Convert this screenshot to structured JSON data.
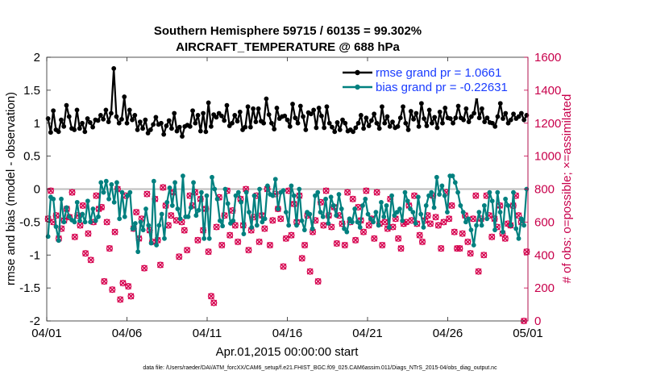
{
  "chart_data": {
    "type": "line",
    "title": "Southern Hemisphere 59715 / 60135 = 99.302%",
    "subtitle": "AIRCRAFT_TEMPERATURE @ 688 hPa",
    "xlabel": "Apr.01,2015 00:00:00 start",
    "ylabel": "rmse and bias (model - observation)",
    "ylabel_right": "# of obs: o=possible; ×=assimilated",
    "xlim": [
      0,
      30
    ],
    "ylim": [
      -2,
      2
    ],
    "ylim_right": [
      0,
      1600
    ],
    "x_ticks": [
      0,
      5,
      10,
      15,
      20,
      25,
      30
    ],
    "x_tick_labels": [
      "04/01",
      "04/06",
      "04/11",
      "04/16",
      "04/21",
      "04/26",
      "05/01"
    ],
    "y_ticks": [
      -2,
      -1.5,
      -1,
      -0.5,
      0,
      0.5,
      1,
      1.5,
      2
    ],
    "y_tick_labels": [
      "-2",
      "-1.5",
      "-1",
      "-0.5",
      "0",
      "0.5",
      "1",
      "1.5",
      "2"
    ],
    "y_right_ticks": [
      0,
      200,
      400,
      600,
      800,
      1000,
      1200,
      1400,
      1600
    ],
    "y_right_tick_labels": [
      "0",
      "200",
      "400",
      "600",
      "800",
      "1000",
      "1200",
      "1400",
      "1600"
    ],
    "zero_line": 0,
    "legend_position": "top-right",
    "series": [
      {
        "name": "rmse grand pr = 1.0661",
        "color": "#000000",
        "marker": "star",
        "values": [
          1.07,
          0.86,
          1.19,
          0.9,
          0.87,
          1.05,
          0.95,
          1.27,
          1.1,
          0.92,
          0.9,
          1.2,
          0.92,
          1.0,
          0.87,
          1.07,
          1.01,
          0.94,
          1.05,
          1.04,
          1.12,
          1.06,
          1.2,
          1.02,
          1.15,
          1.83,
          1.1,
          1.0,
          1.06,
          1.4,
          1.0,
          1.2,
          1.05,
          1.12,
          0.9,
          1.02,
          0.92,
          1.05,
          0.85,
          0.9,
          0.98,
          1.09,
          0.98,
          1.0,
          0.83,
          0.96,
          1.04,
          0.92,
          1.15,
          0.88,
          0.94,
          0.8,
          0.95,
          0.97,
          0.95,
          1.19,
          1.0,
          1.12,
          0.88,
          1.15,
          0.87,
          1.31,
          0.95,
          1.13,
          1.09,
          1.15,
          1.11,
          1.04,
          1.27,
          0.96,
          1.0,
          1.12,
          1.03,
          1.17,
          0.9,
          0.94,
          1.25,
          0.94,
          1.22,
          1.02,
          1.22,
          1.03,
          1.0,
          1.37,
          1.13,
          1.0,
          0.91,
          1.23,
          1.07,
          1.1,
          1.11,
          1.05,
          0.95,
          1.29,
          1.08,
          1.0,
          1.26,
          1.1,
          0.9,
          1.16,
          1.14,
          1.2,
          0.93,
          1.23,
          1.11,
          0.93,
          1.25,
          1.0,
          0.94,
          0.87,
          1.01,
          0.9,
          1.05,
          1.0,
          0.88,
          0.9,
          0.87,
          0.93,
          1.0,
          1.12,
          0.92,
          1.08,
          0.96,
          1.04,
          1.14,
          1.0,
          0.92,
          1.25,
          1.0,
          1.1,
          0.95,
          1.02,
          0.93,
          0.95,
          1.08,
          1.25,
          1.0,
          0.9,
          1.18,
          1.06,
          1.15,
          0.95,
          1.3,
          1.07,
          0.96,
          1.2,
          1.0,
          1.09,
          0.93,
          1.17,
          1.0,
          1.23,
          1.08,
          1.07,
          1.0,
          1.08,
          1.26,
          1.08,
          1.05,
          1.22,
          1.02,
          1.1,
          1.15,
          1.4,
          1.08,
          1.22,
          1.02,
          1.08,
          1.01,
          1.0,
          0.95,
          1.1,
          1.3,
          1.07,
          1.15,
          1.0,
          1.05,
          1.14,
          1.07,
          1.1,
          1.15,
          1.05,
          1.12
        ]
      },
      {
        "name": "bias grand pr = -0.22631",
        "color": "#00807f",
        "marker": "star",
        "values": [
          -0.72,
          -0.12,
          -0.15,
          -0.57,
          -0.78,
          -0.15,
          -0.5,
          -0.28,
          -0.42,
          -0.47,
          -0.5,
          -0.2,
          -0.48,
          -0.38,
          -0.5,
          -0.18,
          -0.5,
          -0.3,
          -0.48,
          -0.42,
          0.1,
          -0.05,
          0.12,
          -0.15,
          0.07,
          -0.2,
          0.1,
          -0.45,
          -0.05,
          -0.42,
          -0.1,
          -0.05,
          -0.6,
          -0.52,
          -0.95,
          -0.5,
          -0.62,
          -0.3,
          -0.55,
          -0.82,
          0.12,
          -0.85,
          -0.55,
          -0.38,
          -0.75,
          -0.2,
          0.02,
          -0.25,
          0.1,
          -0.3,
          -0.45,
          0.2,
          -0.42,
          -0.42,
          -0.28,
          0.1,
          -0.4,
          -0.32,
          -0.05,
          -0.75,
          -0.1,
          -0.75,
          0.18,
          0.0,
          -0.15,
          -0.48,
          -0.56,
          0.0,
          -0.22,
          -0.52,
          -0.48,
          -0.1,
          -0.05,
          -0.2,
          -0.68,
          -0.05,
          -0.35,
          -0.58,
          -0.1,
          -0.55,
          0.0,
          -0.5,
          -0.45,
          0.05,
          -0.08,
          -0.1,
          0.15,
          -0.3,
          -0.05,
          -0.02,
          -0.35,
          -0.55,
          0.05,
          -0.1,
          -0.55,
          0.0,
          -0.48,
          -0.62,
          -0.35,
          -0.38,
          -0.6,
          -0.1,
          -0.05,
          -0.35,
          -0.42,
          -0.15,
          -0.52,
          -0.12,
          -0.25,
          -0.4,
          -0.08,
          -0.3,
          -0.6,
          -0.65,
          -0.45,
          -0.5,
          -0.3,
          -0.5,
          -0.58,
          -0.25,
          -0.15,
          -0.38,
          -0.45,
          -0.5,
          -0.35,
          -0.55,
          -0.2,
          -0.42,
          -0.25,
          -0.58,
          -0.1,
          -0.4,
          -0.35,
          -0.3,
          -0.48,
          -0.05,
          -0.18,
          -0.3,
          -0.35,
          -0.52,
          -0.12,
          -0.38,
          -0.58,
          -0.25,
          -0.1,
          -0.05,
          -0.28,
          0.18,
          -0.08,
          0.05,
          -0.1,
          -0.35,
          0.2,
          0.2,
          0.1,
          -0.05,
          -0.25,
          -0.35,
          -0.5,
          -0.45,
          -0.62,
          -0.85,
          -0.55,
          -0.35,
          -0.55,
          -0.25,
          -0.45,
          -0.05,
          -0.18,
          -0.62,
          -0.05,
          -0.35,
          -0.65,
          -0.15,
          -0.25,
          -0.55,
          -0.05,
          -0.6,
          -0.75,
          -0.45,
          -0.55,
          0.0
        ]
      }
    ],
    "obs_counts": {
      "name": "# of obs",
      "color": "#d6004e",
      "values": [
        620,
        790,
        600,
        640,
        500,
        560,
        610,
        680,
        630,
        780,
        510,
        640,
        580,
        700,
        410,
        530,
        370,
        600,
        760,
        680,
        690,
        240,
        600,
        440,
        190,
        540,
        800,
        130,
        230,
        760,
        210,
        150,
        560,
        660,
        500,
        620,
        320,
        770,
        550,
        480,
        740,
        490,
        340,
        810,
        700,
        580,
        640,
        780,
        610,
        390,
        600,
        550,
        430,
        760,
        700,
        780,
        490,
        740,
        550,
        680,
        420,
        150,
        110,
        570,
        750,
        460,
        640,
        790,
        520,
        670,
        580,
        480,
        740,
        580,
        800,
        430,
        550,
        630,
        760,
        480,
        640,
        560,
        800,
        460,
        610,
        770,
        680,
        620,
        330,
        500,
        790,
        520,
        710,
        600,
        760,
        380,
        460,
        640,
        300,
        540,
        610,
        240,
        720,
        580,
        790,
        640,
        570,
        690,
        470,
        640,
        590,
        460,
        780,
        600,
        740,
        490,
        690,
        610,
        540,
        790,
        580,
        620,
        500,
        780,
        590,
        460,
        600,
        560,
        740,
        570,
        620,
        500,
        440,
        590,
        600,
        700,
        610,
        760,
        590,
        520,
        480,
        610,
        640,
        590,
        760,
        630,
        580,
        440,
        600,
        780,
        620,
        700,
        540,
        440,
        440,
        530,
        640,
        480,
        410,
        620,
        760,
        300,
        620,
        400,
        760,
        640,
        510,
        620,
        570,
        700,
        530,
        500,
        590,
        580,
        700,
        760,
        640,
        600,
        0,
        420
      ]
    },
    "legend": [
      "rmse grand pr = 1.0661",
      "bias grand pr = -0.22631"
    ],
    "footnote": "data file: /Users/raeder/DAI/ATM_forcXX/CAM6_setup/f.e21.FHIST_BGC.f09_025.CAM6assim.011/Diags_NTrS_2015-04/obs_diag_output.nc"
  }
}
